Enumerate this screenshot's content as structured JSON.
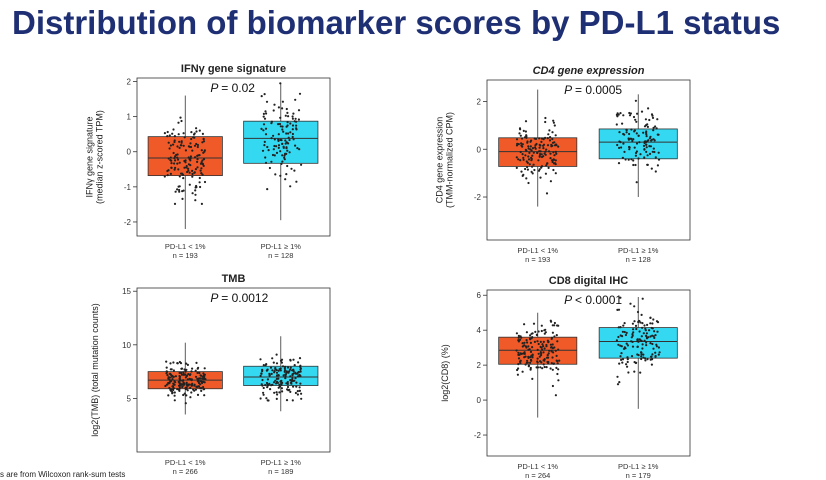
{
  "slide": {
    "title": "Distribution of biomarker scores by PD-L1 status",
    "footnote": "s are from Wilcoxon rank-sum tests"
  },
  "colors": {
    "low": "#f05a28",
    "high": "#34d8f0",
    "point": "#222222"
  },
  "chart_data": [
    {
      "type": "box",
      "title": "IFNγ gene signature",
      "ylabel": [
        "IFNγ gene signature",
        "(median z-scored TPM)"
      ],
      "ylim": [
        -2.4,
        2.1
      ],
      "yticks": [
        -2,
        -1,
        0,
        1,
        2
      ],
      "pvalue": "= 0.02",
      "groups": [
        {
          "label": "PD-L1 < 1%",
          "n": "n = 193",
          "min": -2.2,
          "q1": -0.68,
          "median": -0.18,
          "q3": 0.43,
          "max": 1.6
        },
        {
          "label": "PD-L1 ≥ 1%",
          "n": "n = 128",
          "min": -1.95,
          "q1": -0.33,
          "median": 0.38,
          "q3": 0.87,
          "max": 1.95
        }
      ]
    },
    {
      "type": "box",
      "title": "CD4 gene expression",
      "ylabel": [
        "CD4 gene expression",
        "(TMM-normalized CPM)"
      ],
      "ylim": [
        -3.8,
        2.9
      ],
      "yticks": [
        -2,
        0,
        2
      ],
      "pvalue": "= 0.0005",
      "groups": [
        {
          "label": "PD-L1 < 1%",
          "n": "n = 193",
          "min": -2.4,
          "q1": -0.72,
          "median": -0.1,
          "q3": 0.48,
          "max": 2.5
        },
        {
          "label": "PD-L1 ≥ 1%",
          "n": "n = 128",
          "min": -2.0,
          "q1": -0.4,
          "median": 0.3,
          "q3": 0.85,
          "max": 2.3
        }
      ]
    },
    {
      "type": "box",
      "title": "TMB",
      "ylabel": [
        "log2(TMB) (total mutation counts)"
      ],
      "ylim": [
        0,
        15.3
      ],
      "yticks": [
        5,
        10,
        15
      ],
      "pvalue": "= 0.0012",
      "groups": [
        {
          "label": "PD-L1 < 1%",
          "n": "n = 266",
          "min": 3.5,
          "q1": 5.9,
          "median": 6.7,
          "q3": 7.5,
          "max": 10.2
        },
        {
          "label": "PD-L1 ≥ 1%",
          "n": "n = 189",
          "min": 3.8,
          "q1": 6.2,
          "median": 7.0,
          "q3": 8.0,
          "max": 10.8
        }
      ]
    },
    {
      "type": "box",
      "title": "CD8 digital IHC",
      "ylabel": [
        "log2(CD8) (%)"
      ],
      "ylim": [
        -3.2,
        6.3
      ],
      "yticks": [
        -2,
        0,
        2,
        4,
        6
      ],
      "pvalue": "< 0.0001",
      "groups": [
        {
          "label": "PD-L1 < 1%",
          "n": "n = 264",
          "min": -1.0,
          "q1": 2.05,
          "median": 2.85,
          "q3": 3.6,
          "max": 5.0
        },
        {
          "label": "PD-L1 ≥ 1%",
          "n": "n = 179",
          "min": -0.5,
          "q1": 2.4,
          "median": 3.35,
          "q3": 4.15,
          "max": 5.9
        }
      ]
    }
  ]
}
